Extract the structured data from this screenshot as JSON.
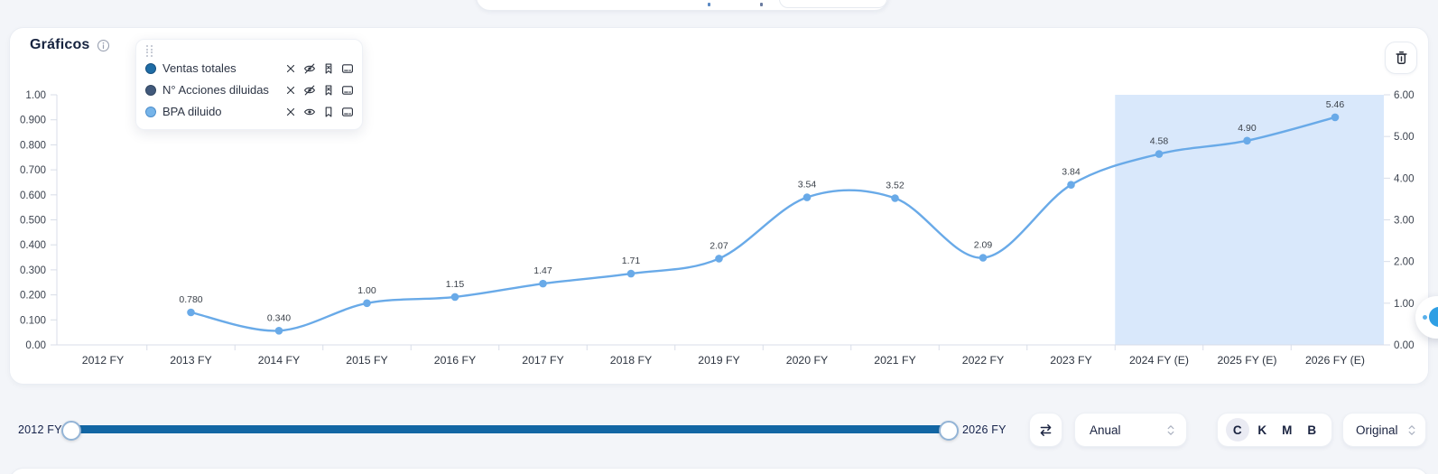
{
  "header": {
    "title": "Gráficos"
  },
  "legend": {
    "items": [
      {
        "label": "Ventas totales",
        "dot_color": "#1f6ca5",
        "dot_ring": "#175181",
        "visible": false
      },
      {
        "label": "N° Acciones diluidas",
        "dot_color": "#41597b",
        "dot_ring": "#324761",
        "visible": false
      },
      {
        "label": "BPA diluido",
        "dot_color": "#76b4e9",
        "dot_ring": "#4d8ecb",
        "visible": true
      }
    ]
  },
  "chart_data": {
    "type": "line",
    "title": "Gráficos",
    "categories": [
      "2012 FY",
      "2013 FY",
      "2014 FY",
      "2015 FY",
      "2016 FY",
      "2017 FY",
      "2018 FY",
      "2019 FY",
      "2020 FY",
      "2021 FY",
      "2022 FY",
      "2023 FY",
      "2024 FY (E)",
      "2025 FY (E)",
      "2026 FY (E)"
    ],
    "series": [
      {
        "name": "BPA diluido",
        "axis": "right",
        "color": "#69aae8",
        "values": [
          null,
          0.78,
          0.34,
          1.0,
          1.15,
          1.47,
          1.71,
          2.07,
          3.54,
          3.52,
          2.09,
          3.84,
          4.58,
          4.9,
          5.46
        ],
        "point_labels": [
          null,
          "0.780",
          "0.340",
          "1.00",
          "1.15",
          "1.47",
          "1.71",
          "2.07",
          "3.54",
          "3.52",
          "2.09",
          "3.84",
          "4.58",
          "4.90",
          "5.46"
        ]
      }
    ],
    "hidden_series": [
      "Ventas totales",
      "N° Acciones diluidas"
    ],
    "left_axis": {
      "labels": [
        "1.00",
        "0.900",
        "0.800",
        "0.700",
        "0.600",
        "0.500",
        "0.400",
        "0.300",
        "0.200",
        "0.100",
        "0.00"
      ],
      "range": [
        0,
        1
      ]
    },
    "right_axis": {
      "labels": [
        "6.00",
        "5.00",
        "4.00",
        "3.00",
        "2.00",
        "1.00",
        "0.00"
      ],
      "range": [
        0,
        6
      ]
    },
    "forecast_band": {
      "from_category": "2024 FY (E)",
      "color": "#d9e8fb"
    },
    "grid": false,
    "legend_position": "floating-top-left"
  },
  "range_slider": {
    "start_label": "2012 FY",
    "end_label": "2026 FY",
    "track_color": "#1266a4"
  },
  "controls": {
    "period_value": "Anual",
    "unit_options": [
      "C",
      "K",
      "M",
      "B"
    ],
    "unit_selected": "C",
    "scale_value": "Original"
  },
  "colors": {
    "page_bg": "#f3f5f9",
    "axis": "#d8dde8",
    "tick_text": "#3d4450",
    "x_label_text": "#2d3440",
    "point_label_text": "#3a4049"
  }
}
